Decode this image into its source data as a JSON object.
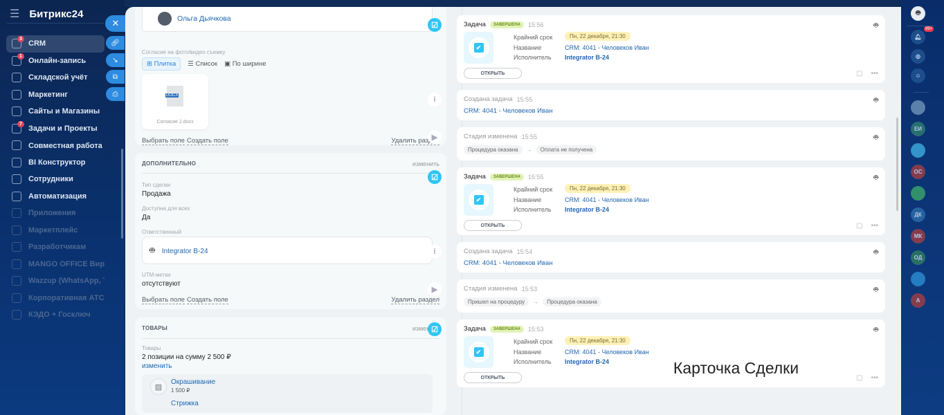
{
  "sidebar": {
    "logo": "Битрикс24",
    "items": [
      {
        "label": "CRM",
        "badge": "3",
        "active": true
      },
      {
        "label": "Онлайн-запись",
        "badge": "1"
      },
      {
        "label": "Складской учёт"
      },
      {
        "label": "Маркетинг"
      },
      {
        "label": "Сайты и Магазины"
      },
      {
        "label": "Задачи и Проекты",
        "badge": "7"
      },
      {
        "label": "Совместная работа ⌄"
      },
      {
        "label": "BI Конструктор"
      },
      {
        "label": "Сотрудники"
      },
      {
        "label": "Автоматизация"
      },
      {
        "label": "Приложения",
        "dim": true
      },
      {
        "label": "Маркетплейс",
        "dim": true
      },
      {
        "label": "Разработчикам",
        "dim": true
      },
      {
        "label": "MANGO OFFICE Вирт...",
        "dim": true
      },
      {
        "label": "Wazzup (WhatsApp, T...",
        "dim": true
      },
      {
        "label": "Корпоративная АТС ...",
        "dim": true
      },
      {
        "label": "КЭДО + Госключ",
        "dim": true
      }
    ]
  },
  "side_buttons": [
    "close",
    "link",
    "minimize",
    "open-new-window",
    "print"
  ],
  "left": {
    "user_name": "Ольга Дьячкова",
    "consent_label": "Согласие на фото/видео съемку",
    "view_modes": [
      "Плитка",
      "Список",
      "По ширине"
    ],
    "file_ext": "DOCX",
    "file_name": "Согласие 2.docx",
    "select_field": "Выбрать поле",
    "create_field": "Создать поле",
    "delete_section": "Удалить раздел",
    "extra": {
      "title": "ДОПОЛНИТЕЛЬНО",
      "edit": "изменить",
      "deal_type_label": "Тип сделки",
      "deal_type": "Продажа",
      "public_label": "Доступна для всех",
      "public": "Да",
      "resp_label": "Ответственный",
      "resp": "Integrator B-24",
      "utm_label": "UTM-метки",
      "utm": "отсутствуют"
    },
    "products": {
      "title": "ТОВАРЫ",
      "edit": "изменить",
      "label": "Товары",
      "summary": "2 позиции на сумму 2 500 ₽",
      "change": "изменить",
      "items": [
        {
          "name": "Окрашивание",
          "price": "1 500 ₽"
        },
        {
          "name": "Стрижка"
        }
      ]
    }
  },
  "timeline": [
    {
      "type": "task",
      "title": "Задача",
      "status": "ЗАВЕРШЕНА",
      "time": "15:56",
      "deadline_label": "Крайний срок",
      "deadline": "Пн, 22 декабря, 21:30",
      "name_label": "Название",
      "name": "CRM: 4041 - Человеков Иван",
      "assignee_label": "Исполнитель",
      "assignee": "Integrator B-24",
      "open": "ОТКРЫТЬ"
    },
    {
      "type": "created",
      "title": "Создана задача",
      "time": "15:55",
      "link": "CRM: 4041 - Человеков Иван"
    },
    {
      "type": "stage",
      "title": "Стадия изменена",
      "time": "15:55",
      "from": "Процедура оказана",
      "to": "Оплата не получена"
    },
    {
      "type": "task",
      "title": "Задача",
      "status": "ЗАВЕРШЕНА",
      "time": "15:55",
      "deadline_label": "Крайний срок",
      "deadline": "Пн, 22 декабря, 21:30",
      "name_label": "Название",
      "name": "CRM: 4041 - Человеков Иван",
      "assignee_label": "Исполнитель",
      "assignee": "Integrator B-24",
      "open": "ОТКРЫТЬ"
    },
    {
      "type": "created",
      "title": "Создана задача",
      "time": "15:54",
      "link": "CRM: 4041 - Человеков Иван"
    },
    {
      "type": "stage",
      "title": "Стадия изменена",
      "time": "15:53",
      "from": "Пришел на процедуру",
      "to": "Процедура оказана"
    },
    {
      "type": "task",
      "title": "Задача",
      "status": "ЗАВЕРШЕНА",
      "time": "15:53",
      "deadline_label": "Крайний срок",
      "deadline": "Пн, 22 декабря, 21:30",
      "name_label": "Название",
      "name": "CRM: 4041 - Человеков Иван",
      "assignee_label": "Исполнитель",
      "assignee": "Integrator B-24",
      "open": "ОТКРЫТЬ"
    }
  ],
  "rail": {
    "notif_badge": "99+",
    "contacts": [
      {
        "text": "",
        "color": "#6a8fb5"
      },
      {
        "text": "ЕИ",
        "color": "#2f7a73"
      },
      {
        "text": "",
        "color": "#3aa6d8"
      },
      {
        "text": "ОС",
        "color": "#9a3e48"
      },
      {
        "text": "",
        "color": "#3aa06a"
      },
      {
        "text": "ДК",
        "color": "#2c6aa8"
      },
      {
        "text": "МК",
        "color": "#9a3e48"
      },
      {
        "text": "ОД",
        "color": "#2f7a63"
      },
      {
        "text": "",
        "color": "#2a88cc"
      },
      {
        "text": "А",
        "color": "#9a3e48"
      }
    ]
  },
  "caption": "Карточка Сделки"
}
